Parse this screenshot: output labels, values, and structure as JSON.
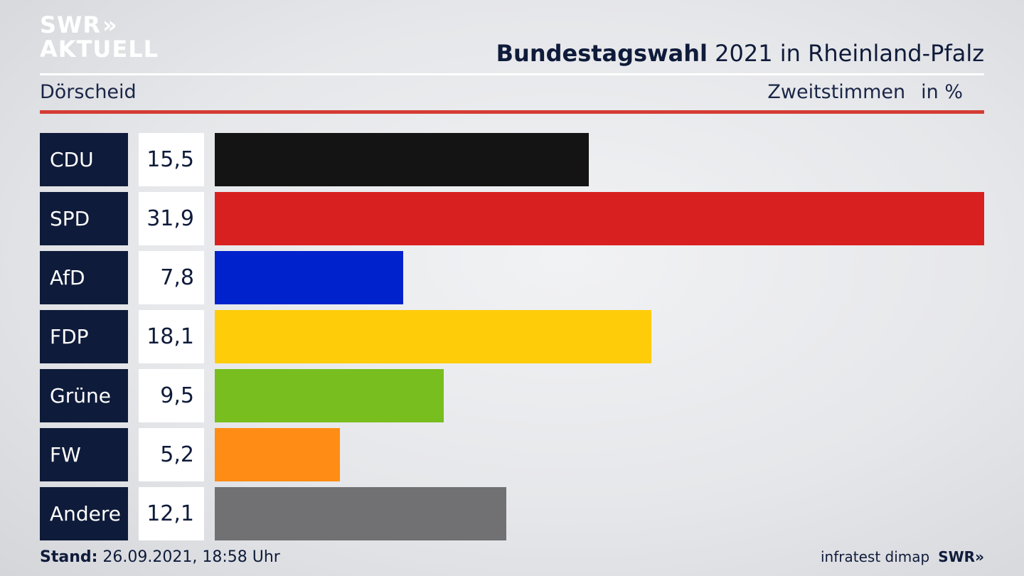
{
  "brand": {
    "logo_line1": "SWR",
    "logo_arrows": "»",
    "logo_line2": "AKTUELL",
    "footer_logo": "SWR»"
  },
  "header": {
    "title_bold": "Bundestagswahl",
    "title_rest": " 2021 in Rheinland-Pfalz",
    "location": "Dörscheid",
    "measure": "Zweitstimmen",
    "unit": "in %"
  },
  "footer": {
    "stand_label": "Stand:",
    "stand_value": " 26.09.2021, 18:58 Uhr",
    "source": "infratest dimap"
  },
  "colors": {
    "accent_red": "#d43c34",
    "navy": "#0f1b3a"
  },
  "chart_data": {
    "type": "bar",
    "orientation": "horizontal",
    "categories": [
      "CDU",
      "SPD",
      "AfD",
      "FDP",
      "Grüne",
      "FW",
      "Andere"
    ],
    "values": [
      15.5,
      31.9,
      7.8,
      18.1,
      9.5,
      5.2,
      12.1
    ],
    "value_labels": [
      "15,5",
      "31,9",
      "7,8",
      "18,1",
      "9,5",
      "5,2",
      "12,1"
    ],
    "colors": [
      "#141414",
      "#d82020",
      "#0022cc",
      "#ffcc0a",
      "#78be1e",
      "#ff8c14",
      "#717173"
    ],
    "title": "Bundestagswahl 2021 in Rheinland-Pfalz",
    "xlim": [
      0,
      31.9
    ],
    "grid": false,
    "legend": "none"
  }
}
